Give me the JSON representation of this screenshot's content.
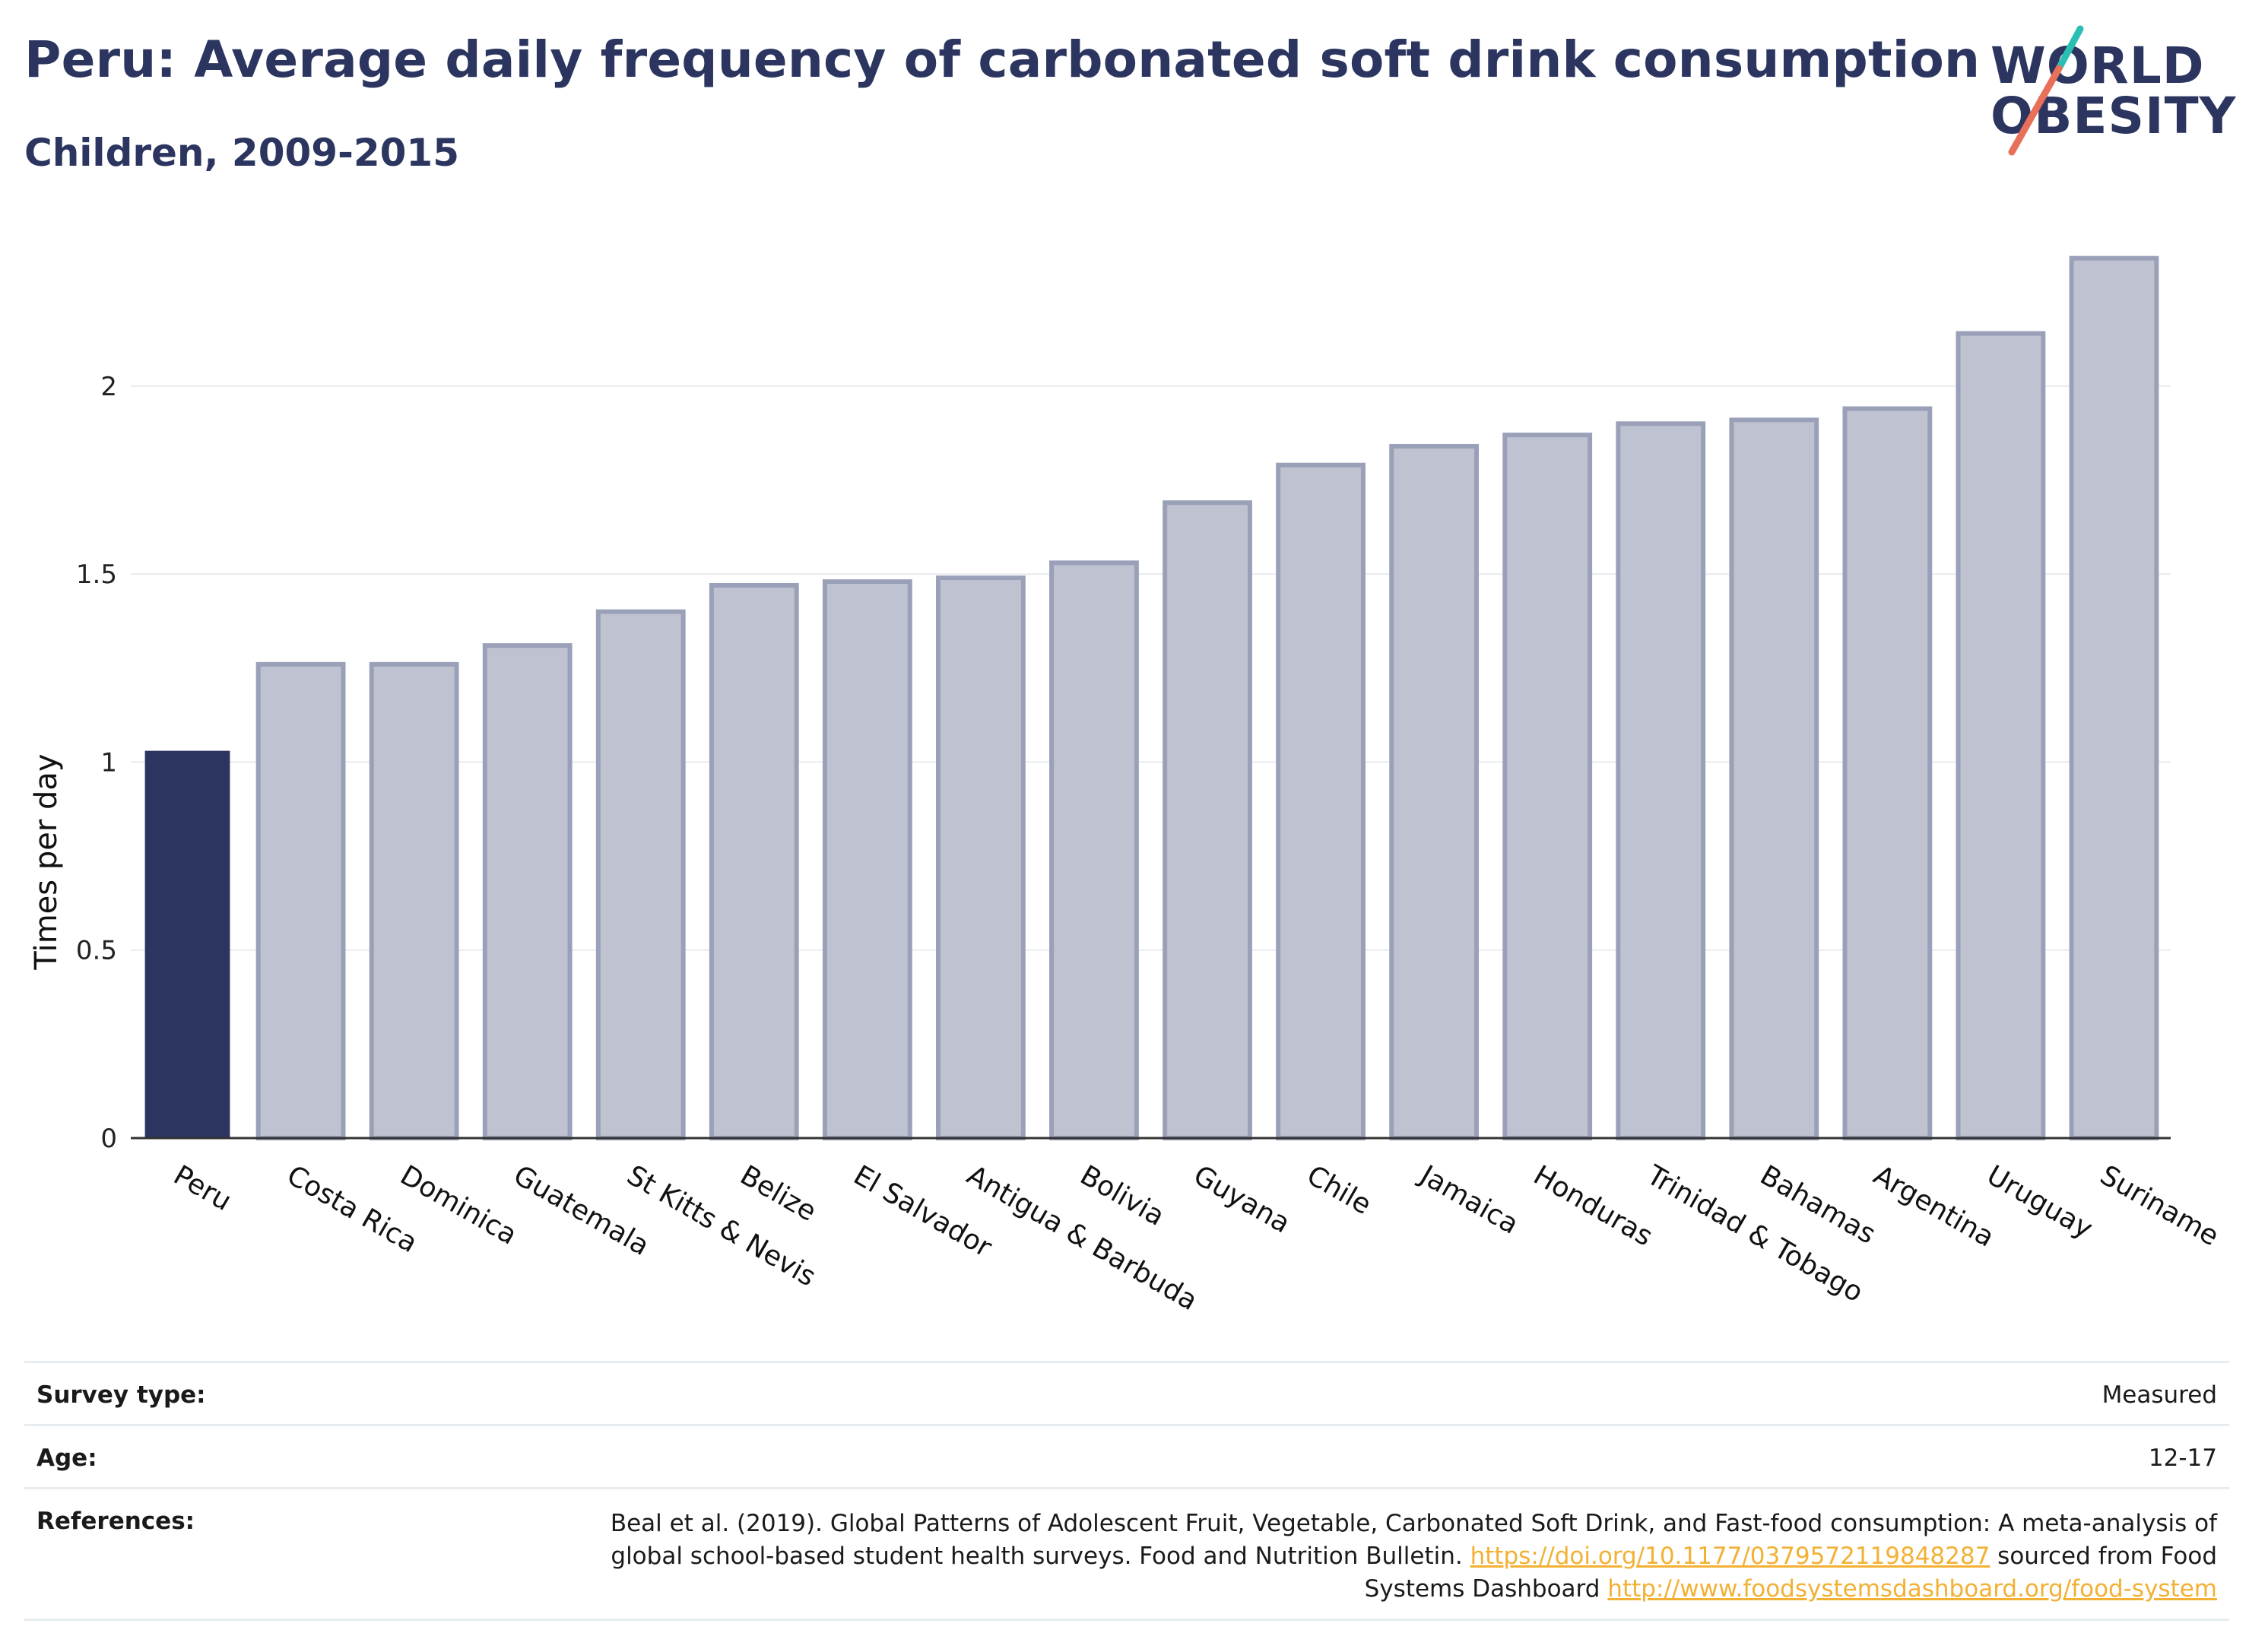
{
  "header": {
    "title": "Peru: Average daily frequency of carbonated soft drink consumption",
    "subtitle": "Children, 2009-2015"
  },
  "logo": {
    "line1": "WORLD",
    "line2": "OBESITY",
    "slash_colors": [
      "#2bbfb4",
      "#e8705a"
    ]
  },
  "colors": {
    "highlight_bar": "#2b355f",
    "other_bar_fill": "#bfc2d0",
    "other_bar_stroke": "#9aa0b8",
    "grid": "#e9ecef",
    "link": "#f2b134"
  },
  "chart_data": {
    "type": "bar",
    "title": "Peru: Average daily frequency of carbonated soft drink consumption",
    "subtitle": "Children, 2009-2015",
    "xlabel": "",
    "ylabel": "Times per day",
    "ylim": [
      0,
      2.4
    ],
    "yticks": [
      0,
      0.5,
      1,
      1.5,
      2
    ],
    "ytick_labels": [
      "0",
      "0.5",
      "1",
      "1.5",
      "2"
    ],
    "grid": true,
    "highlight": "Peru",
    "categories": [
      "Peru",
      "Costa Rica",
      "Dominica",
      "Guatemala",
      "St Kitts & Nevis",
      "Belize",
      "El Salvador",
      "Antigua & Barbuda",
      "Bolivia",
      "Guyana",
      "Chile",
      "Jamaica",
      "Honduras",
      "Trinidad & Tobago",
      "Bahamas",
      "Argentina",
      "Uruguay",
      "Suriname"
    ],
    "values": [
      1.03,
      1.26,
      1.26,
      1.31,
      1.4,
      1.47,
      1.48,
      1.49,
      1.53,
      1.69,
      1.79,
      1.84,
      1.87,
      1.9,
      1.91,
      1.94,
      2.14,
      2.34
    ]
  },
  "info": {
    "survey_label": "Survey type:",
    "survey_value": "Measured",
    "age_label": "Age:",
    "age_value": "12-17",
    "ref_label": "References:",
    "ref_text_1": "Beal et al. (2019). Global Patterns of Adolescent Fruit, Vegetable, Carbonated Soft Drink, and Fast-food consumption: A meta-analysis of global school-based student health surveys. Food and Nutrition Bulletin. ",
    "ref_link_1": "https://doi.org/10.1177/0379572119848287",
    "ref_text_2": " sourced from Food Systems Dashboard ",
    "ref_link_2": "http://www.foodsystemsdashboard.org/food-system"
  }
}
